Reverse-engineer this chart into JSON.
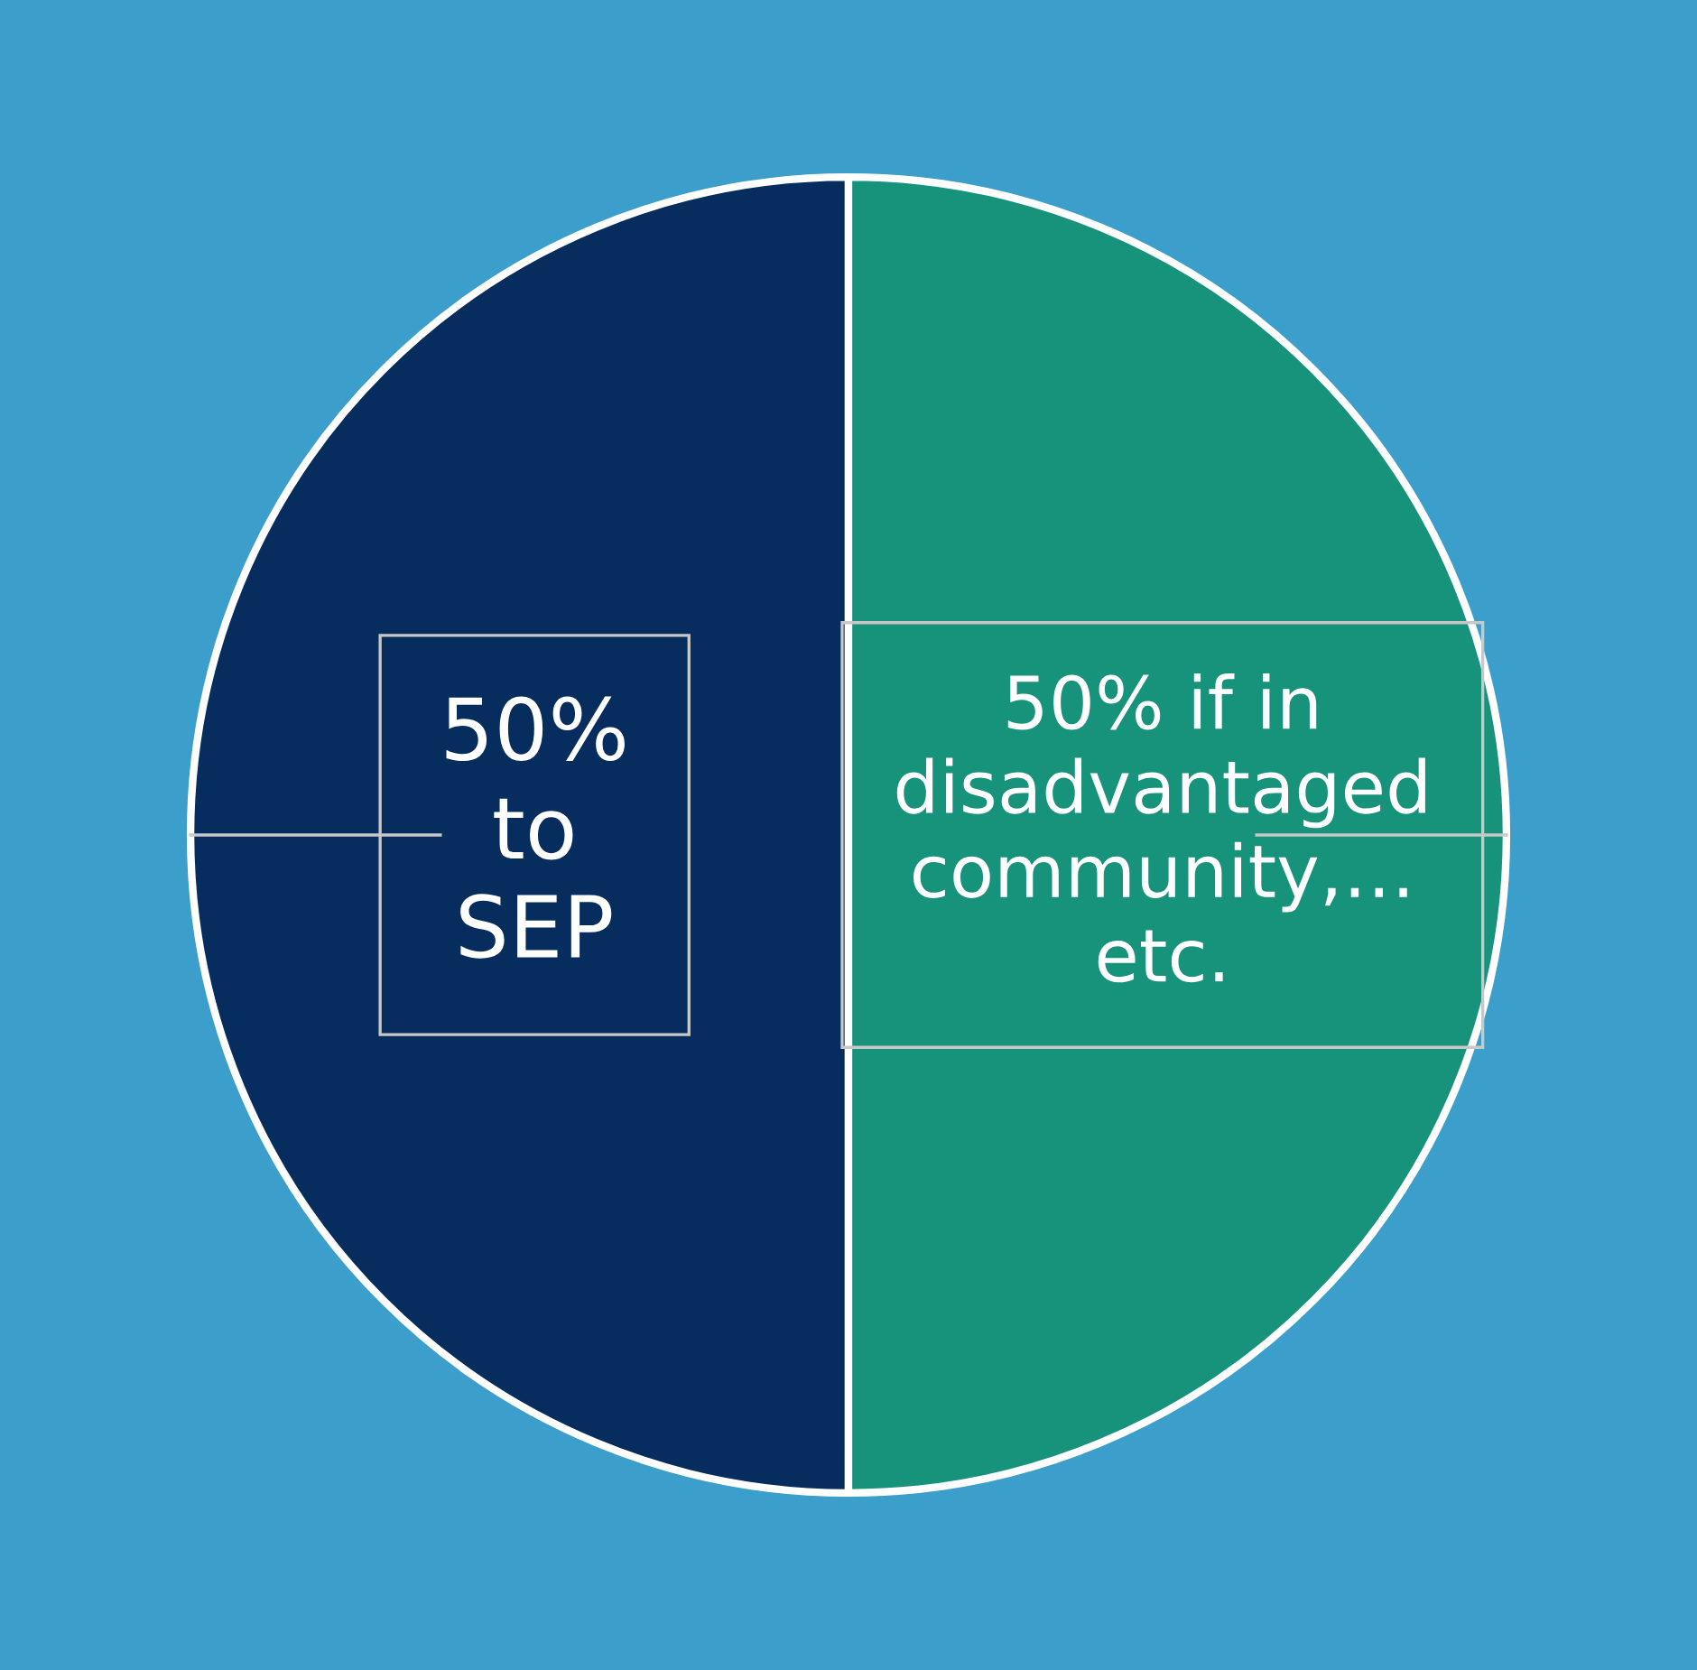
{
  "chart_data": {
    "type": "pie",
    "categories": [
      "50%\nto\nSEP",
      "50% if in\ndisadvantaged\ncommunity,…\netc."
    ],
    "values": [
      50,
      50
    ],
    "colors": [
      "#062d5e",
      "#16937a"
    ]
  }
}
